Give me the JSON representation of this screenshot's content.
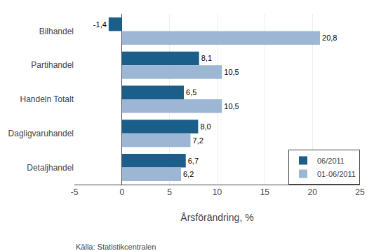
{
  "chart_data": {
    "type": "bar",
    "orientation": "horizontal",
    "categories": [
      "Bilhandel",
      "Partihandel",
      "Handeln Totalt",
      "Dagligvaruhandel",
      "Detaljhandel"
    ],
    "series": [
      {
        "name": "06/2011",
        "color": "#1B5E8A",
        "values": [
          -1.4,
          8.1,
          6.5,
          8.0,
          6.7
        ],
        "value_labels": [
          "-1,4",
          "8,1",
          "6,5",
          "8,0",
          "6,7"
        ]
      },
      {
        "name": "01-06/2011",
        "color": "#9CB6D4",
        "values": [
          20.8,
          10.5,
          10.5,
          7.2,
          6.2
        ],
        "value_labels": [
          "20,8",
          "10,5",
          "10,5",
          "7,2",
          "6,2"
        ]
      }
    ],
    "xlabel": "Årsförändring, %",
    "xlim": [
      -5,
      25
    ],
    "xticks": [
      -5,
      0,
      5,
      10,
      15,
      20,
      25
    ],
    "grid": true,
    "legend": "lower right",
    "data_labels": true,
    "annotations": [
      "Källa: Statistikcentralen"
    ]
  }
}
